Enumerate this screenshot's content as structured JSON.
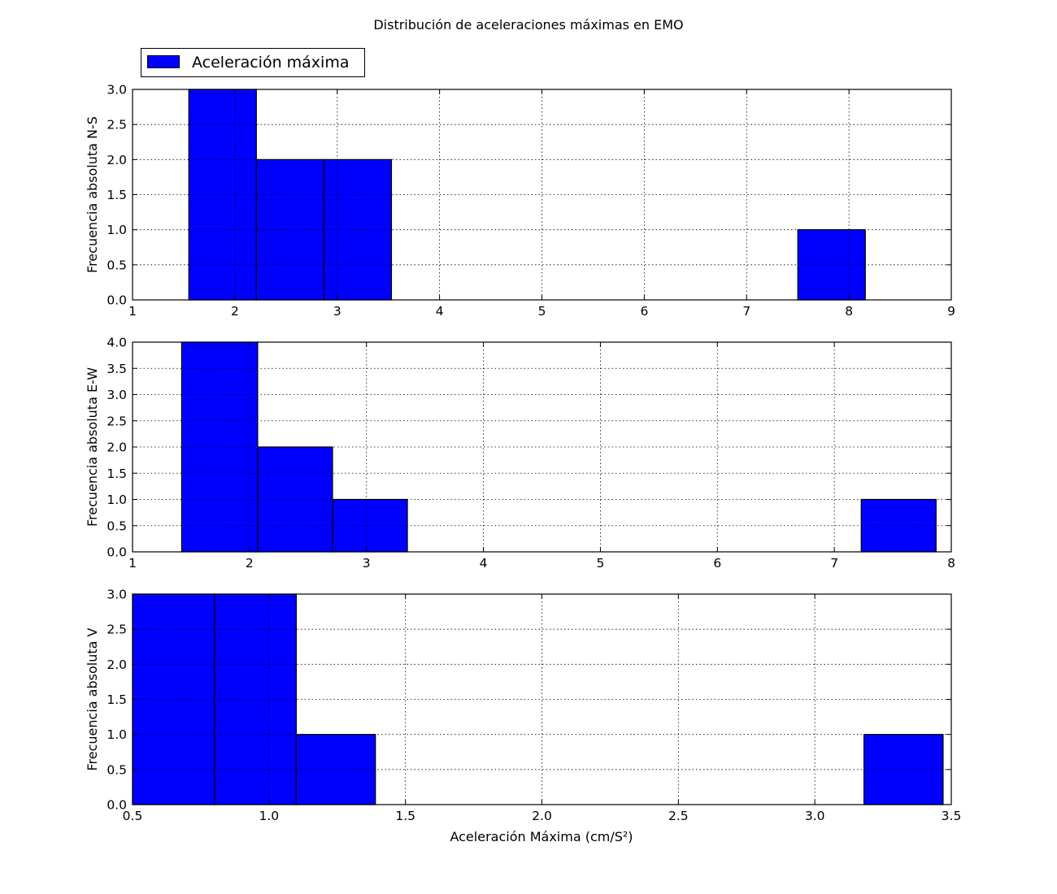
{
  "chart_data": {
    "title": "Distribución de aceleraciones máximas en EMO",
    "legend": {
      "label": "Aceleración máxima",
      "placement": "top-left",
      "color": "#0000ff"
    },
    "xlabel": "Aceleración Máxima (cm/S²)",
    "grid": true,
    "subplots": [
      {
        "type": "bar",
        "ylabel": "Frecuencia absoluta N-S",
        "xlim": [
          1,
          9
        ],
        "ylim": [
          0,
          3
        ],
        "xticks": [
          1,
          2,
          3,
          4,
          5,
          6,
          7,
          8,
          9
        ],
        "xtick_labels": [
          "1",
          "2",
          "3",
          "4",
          "5",
          "6",
          "7",
          "8",
          "9"
        ],
        "yticks": [
          0,
          0.5,
          1,
          1.5,
          2,
          2.5,
          3
        ],
        "ytick_labels": [
          "0.0",
          "0.5",
          "1.0",
          "1.5",
          "2.0",
          "2.5",
          "3.0"
        ],
        "bins": [
          {
            "x0": 1.55,
            "x1": 2.21,
            "count": 3
          },
          {
            "x0": 2.21,
            "x1": 2.87,
            "count": 2
          },
          {
            "x0": 2.87,
            "x1": 3.53,
            "count": 2
          },
          {
            "x0": 7.5,
            "x1": 8.16,
            "count": 1
          }
        ]
      },
      {
        "type": "bar",
        "ylabel": "Frecuencia absoluta E-W",
        "xlim": [
          1,
          8
        ],
        "ylim": [
          0,
          4
        ],
        "xticks": [
          1,
          2,
          3,
          4,
          5,
          6,
          7,
          8
        ],
        "xtick_labels": [
          "1",
          "2",
          "3",
          "4",
          "5",
          "6",
          "7",
          "8"
        ],
        "yticks": [
          0,
          0.5,
          1,
          1.5,
          2,
          2.5,
          3,
          3.5,
          4
        ],
        "ytick_labels": [
          "0.0",
          "0.5",
          "1.0",
          "1.5",
          "2.0",
          "2.5",
          "3.0",
          "3.5",
          "4.0"
        ],
        "bins": [
          {
            "x0": 1.42,
            "x1": 2.07,
            "count": 4
          },
          {
            "x0": 2.07,
            "x1": 2.71,
            "count": 2
          },
          {
            "x0": 2.71,
            "x1": 3.35,
            "count": 1
          },
          {
            "x0": 7.23,
            "x1": 7.87,
            "count": 1
          }
        ]
      },
      {
        "type": "bar",
        "ylabel": "Frecuencia absoluta V",
        "xlim": [
          0.5,
          3.5
        ],
        "ylim": [
          0,
          3
        ],
        "xticks": [
          0.5,
          1.0,
          1.5,
          2.0,
          2.5,
          3.0,
          3.5
        ],
        "xtick_labels": [
          "0.5",
          "1.0",
          "1.5",
          "2.0",
          "2.5",
          "3.0",
          "3.5"
        ],
        "yticks": [
          0,
          0.5,
          1,
          1.5,
          2,
          2.5,
          3
        ],
        "ytick_labels": [
          "0.0",
          "0.5",
          "1.0",
          "1.5",
          "2.0",
          "2.5",
          "3.0"
        ],
        "bins": [
          {
            "x0": 0.5,
            "x1": 0.8,
            "count": 3
          },
          {
            "x0": 0.8,
            "x1": 1.1,
            "count": 3
          },
          {
            "x0": 1.1,
            "x1": 1.39,
            "count": 1
          },
          {
            "x0": 3.18,
            "x1": 3.47,
            "count": 1
          }
        ]
      }
    ]
  }
}
